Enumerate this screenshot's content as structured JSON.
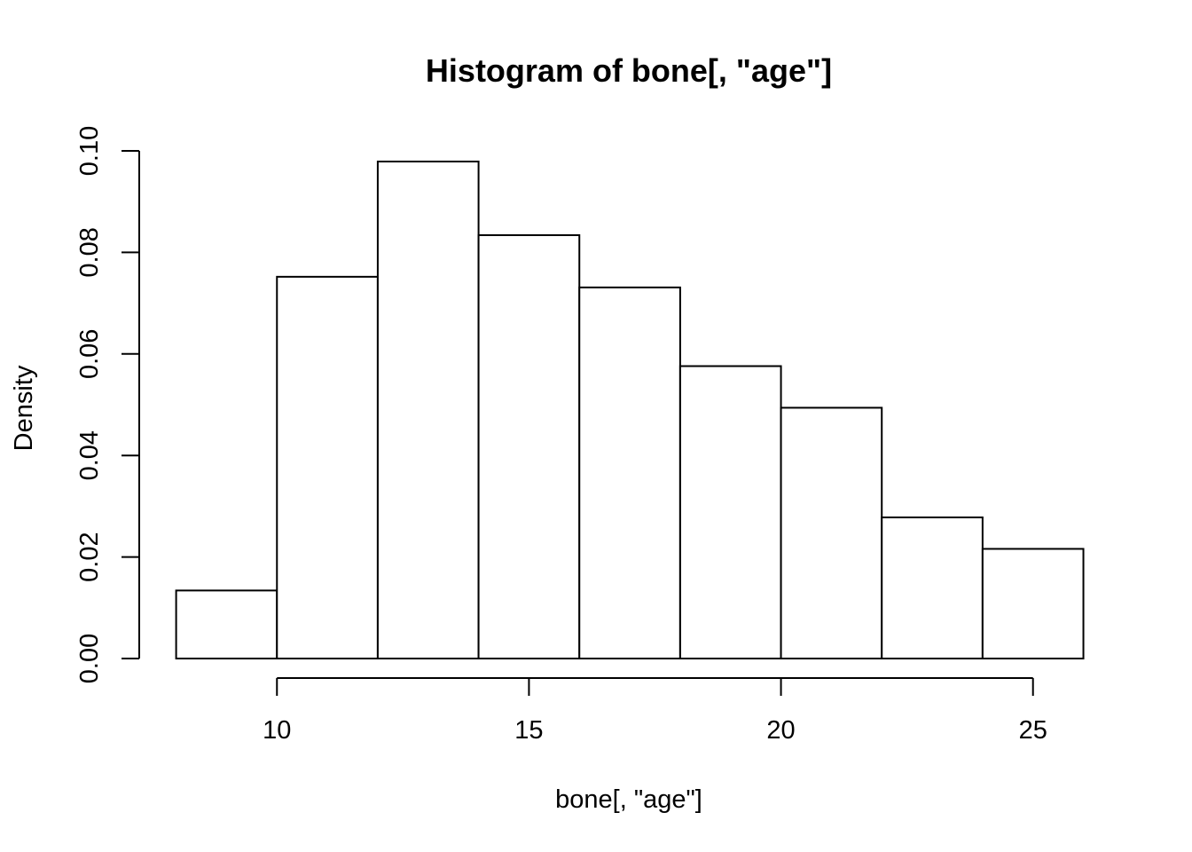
{
  "chart_data": {
    "type": "histogram",
    "title": "Histogram of bone[, \"age\"]",
    "xlabel": "bone[, \"age\"]",
    "ylabel": "Density",
    "bins": [
      {
        "start": 8,
        "end": 10,
        "density": 0.0134
      },
      {
        "start": 10,
        "end": 12,
        "density": 0.0752
      },
      {
        "start": 12,
        "end": 14,
        "density": 0.0979
      },
      {
        "start": 14,
        "end": 16,
        "density": 0.0834
      },
      {
        "start": 16,
        "end": 18,
        "density": 0.0731
      },
      {
        "start": 18,
        "end": 20,
        "density": 0.0576
      },
      {
        "start": 20,
        "end": 22,
        "density": 0.0494
      },
      {
        "start": 22,
        "end": 24,
        "density": 0.0278
      },
      {
        "start": 24,
        "end": 26,
        "density": 0.0216
      }
    ],
    "xticks": [
      10,
      15,
      20,
      25
    ],
    "xtick_labels": [
      "10",
      "15",
      "20",
      "25"
    ],
    "yticks": [
      0,
      0.02,
      0.04,
      0.06,
      0.08,
      0.1
    ],
    "ytick_labels": [
      "0.00",
      "0.02",
      "0.04",
      "0.06",
      "0.08",
      "0.10"
    ],
    "xlim": [
      8,
      26
    ],
    "ylim": [
      0,
      0.1
    ],
    "bar_fill": "#ffffff",
    "bar_stroke": "#000000",
    "grid": false
  }
}
